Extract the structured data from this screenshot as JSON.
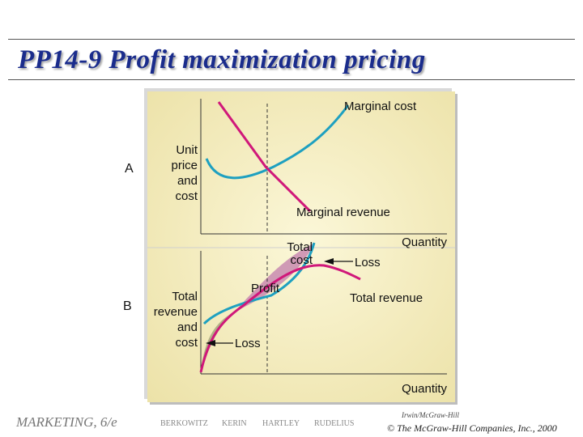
{
  "title": "PP14-9  Profit maximization pricing",
  "panel_a": {
    "label": "A",
    "y_axis_label": [
      "Unit",
      "price",
      "and",
      "cost"
    ],
    "marginal_cost": "Marginal cost",
    "marginal_revenue": "Marginal revenue",
    "x_axis_label": "Quantity"
  },
  "panel_b": {
    "label": "B",
    "y_axis_label": [
      "Total",
      "revenue",
      "and",
      "cost"
    ],
    "total_cost": [
      "Total",
      "cost"
    ],
    "loss_right": "Loss",
    "profit": "Profit",
    "total_revenue": "Total revenue",
    "loss_left": "Loss",
    "x_axis_label": "Quantity"
  },
  "colors": {
    "marginal_cost_curve": "#1ea0c0",
    "marginal_revenue_curve": "#d0187a",
    "profit_fill": "#c88ab0",
    "loss_fill": "#a6a77c",
    "title": "#1a2c8c"
  },
  "footer": {
    "course": "MARKETING, 6/e",
    "authors": [
      "BERKOWITZ",
      "KERIN",
      "HARTLEY",
      "RUDELIUS"
    ],
    "publisher": "Irwin/McGraw-Hill",
    "copyright": "© The McGraw-Hill Companies, Inc., 2000"
  }
}
